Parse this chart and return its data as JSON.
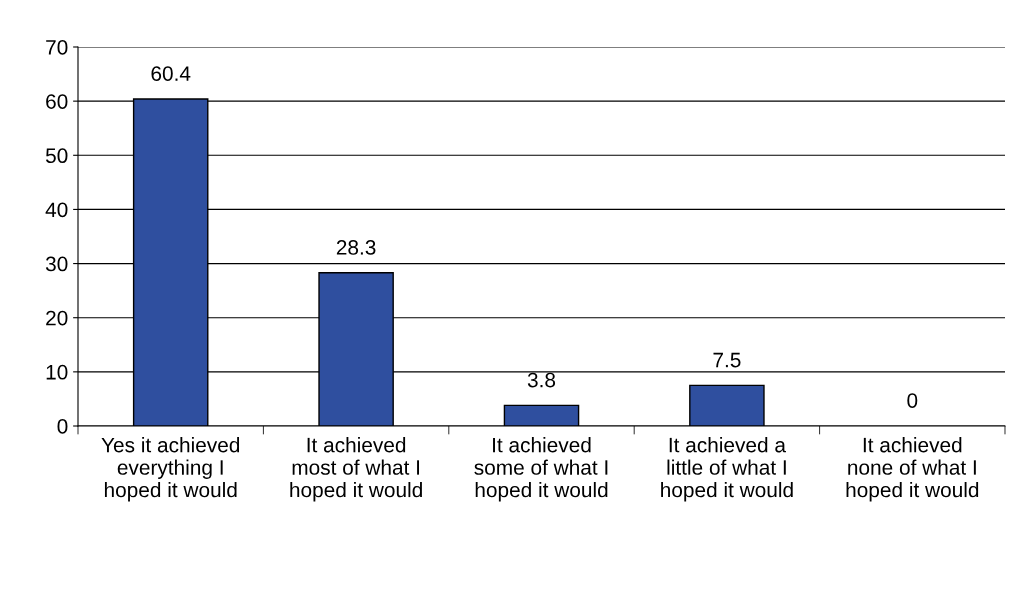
{
  "chart_data": {
    "type": "bar",
    "categories": [
      "Yes it achieved\neverything I\nhoped it would",
      "It achieved\nmost of what I\nhoped it would",
      "It achieved\nsome of what I\nhoped it would",
      "It achieved a\nlittle of what I\nhoped it would",
      "It achieved\nnone of what I\nhoped it would"
    ],
    "values": [
      60.4,
      28.3,
      3.8,
      7.5,
      0
    ],
    "color": "#2f4f9f",
    "ylim": [
      0,
      70
    ],
    "yticks": [
      0,
      10,
      20,
      30,
      40,
      50,
      60,
      70
    ],
    "grid": "y",
    "data_labels": true,
    "legend": false
  }
}
